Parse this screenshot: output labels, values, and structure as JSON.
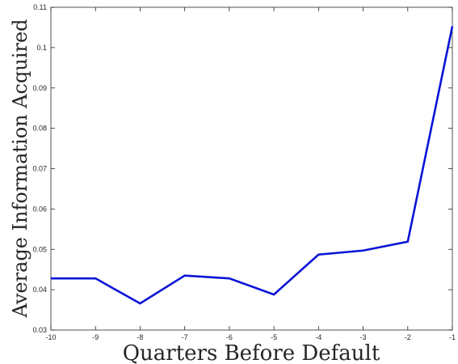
{
  "chart_data": {
    "type": "line",
    "title": "",
    "xlabel": "Quarters Before Default",
    "ylabel": "Average Information Acquired",
    "xlim": [
      -10,
      -1
    ],
    "ylim": [
      0.03,
      0.11
    ],
    "xticks": [
      -10,
      -9,
      -8,
      -7,
      -6,
      -5,
      -4,
      -3,
      -2,
      -1
    ],
    "xtick_labels": [
      "-10",
      "-9",
      "-8",
      "-7",
      "-6",
      "-5",
      "-4",
      "-3",
      "-2",
      "-1"
    ],
    "yticks": [
      0.03,
      0.04,
      0.05,
      0.06,
      0.07,
      0.08,
      0.09,
      0.1,
      0.11
    ],
    "ytick_labels": [
      "0.03",
      "0.04",
      "0.05",
      "0.06",
      "0.07",
      "0.08",
      "0.09",
      "0.1",
      "0.11"
    ],
    "grid": false,
    "line_color": "#0a14d6",
    "series": [
      {
        "x": [
          -10,
          -9,
          -8,
          -7,
          -6,
          -5,
          -4,
          -3,
          -2,
          -1
        ],
        "y": [
          0.0428,
          0.0428,
          0.0366,
          0.0435,
          0.0428,
          0.0388,
          0.0487,
          0.0497,
          0.0519,
          0.1053
        ]
      }
    ]
  }
}
